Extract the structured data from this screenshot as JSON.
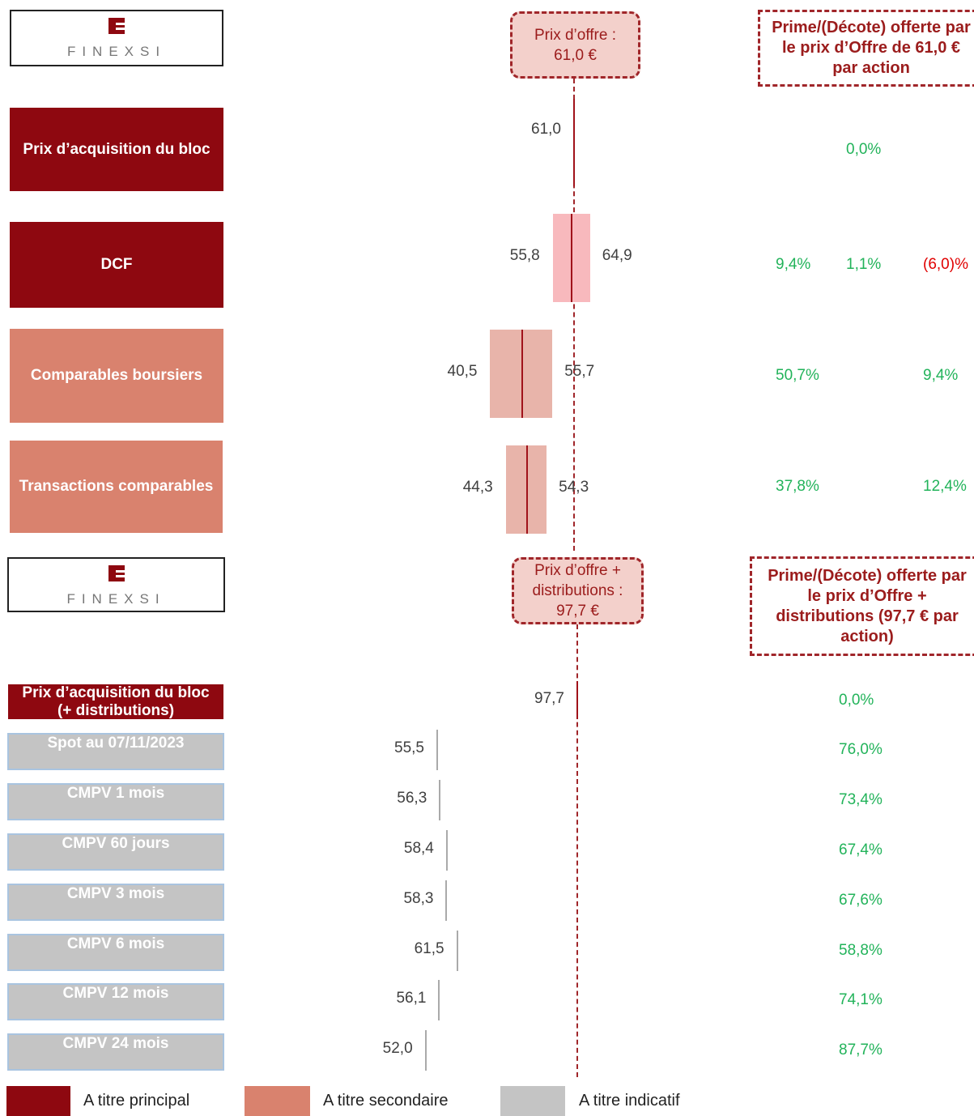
{
  "logo": "FINEXSI",
  "sections": [
    {
      "offer": {
        "label": "Prix d’offre :",
        "value": 61.0,
        "value_label": "61,0 €"
      },
      "premium_header": "Prime/(Décote) offerte par le prix d’Offre de 61,0 € par action",
      "rows": [
        {
          "label": "Prix d’acquisition du bloc",
          "level": "principal",
          "value": 61.0,
          "value_label": "61,0",
          "premiums": {
            "mid": "0,0%"
          }
        },
        {
          "label": "DCF",
          "level": "principal",
          "low": 55.8,
          "mid": 60.4,
          "high": 64.9,
          "low_label": "55,8",
          "high_label": "64,9",
          "premiums": {
            "low": "9,4%",
            "mid": "1,1%",
            "high": "(6,0)%"
          }
        },
        {
          "label": "Comparables boursiers",
          "level": "secondaire",
          "low": 40.5,
          "mid": 48.3,
          "high": 55.7,
          "low_label": "40,5",
          "high_label": "55,7",
          "premiums": {
            "low": "50,7%",
            "high": "9,4%"
          }
        },
        {
          "label": "Transactions comparables",
          "level": "secondaire",
          "low": 44.3,
          "mid": 49.5,
          "high": 54.3,
          "low_label": "44,3",
          "high_label": "54,3",
          "premiums": {
            "low": "37,8%",
            "high": "12,4%"
          }
        }
      ]
    },
    {
      "offer": {
        "label": "Prix d’offre + distributions :",
        "value": 97.7,
        "value_label": "97,7 €"
      },
      "premium_header": "Prime/(Décote) offerte par le prix d’Offre + distributions (97,7 € par action)",
      "rows": [
        {
          "label": "Prix d’acquisition du bloc (+ distributions)",
          "level": "principal",
          "value": 97.7,
          "value_label": "97,7",
          "premiums": {
            "mid": "0,0%"
          }
        },
        {
          "label": "Spot au 07/11/2023",
          "level": "indicatif",
          "value": 55.5,
          "value_label": "55,5",
          "premiums": {
            "mid": "76,0%"
          }
        },
        {
          "label": "CMPV 1 mois",
          "level": "indicatif",
          "value": 56.3,
          "value_label": "56,3",
          "premiums": {
            "mid": "73,4%"
          }
        },
        {
          "label": "CMPV 60 jours",
          "level": "indicatif",
          "value": 58.4,
          "value_label": "58,4",
          "premiums": {
            "mid": "67,4%"
          }
        },
        {
          "label": "CMPV 3 mois",
          "level": "indicatif",
          "value": 58.3,
          "value_label": "58,3",
          "premiums": {
            "mid": "67,6%"
          }
        },
        {
          "label": "CMPV 6 mois",
          "level": "indicatif",
          "value": 61.5,
          "value_label": "61,5",
          "premiums": {
            "mid": "58,8%"
          }
        },
        {
          "label": "CMPV 12 mois",
          "level": "indicatif",
          "value": 56.1,
          "value_label": "56,1",
          "premiums": {
            "mid": "74,1%"
          }
        },
        {
          "label": "CMPV 24 mois",
          "level": "indicatif",
          "value": 52.0,
          "value_label": "52,0",
          "premiums": {
            "mid": "87,7%"
          }
        }
      ]
    }
  ],
  "legend": [
    {
      "label": "A titre principal",
      "level": "principal",
      "color": "#8e0810"
    },
    {
      "label": "A titre secondaire",
      "level": "secondaire",
      "color": "#d9826e"
    },
    {
      "label": "A titre indicatif",
      "level": "indicatif",
      "color": "#c4c4c4"
    }
  ]
}
